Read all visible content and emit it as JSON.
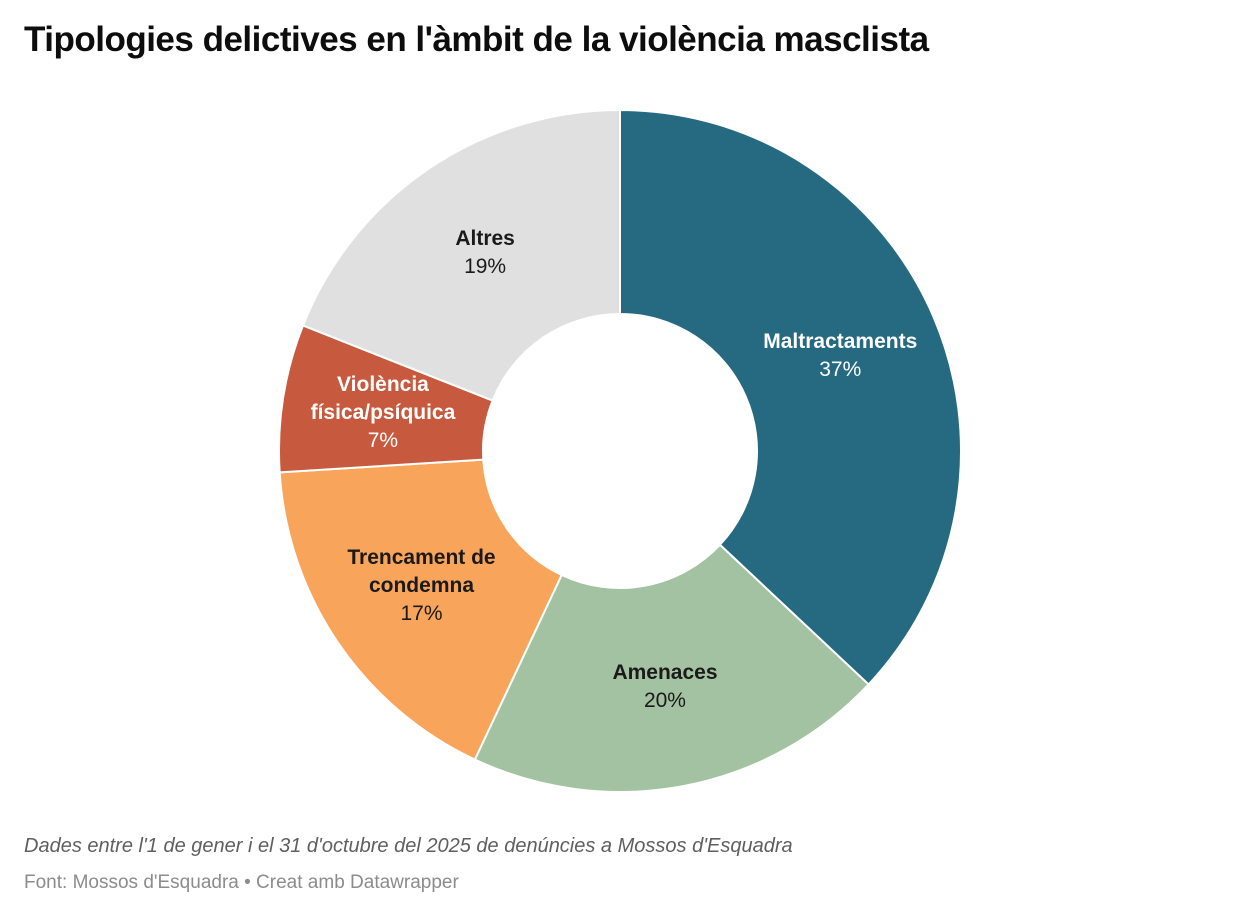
{
  "title": "Tipologies delictives en l'àmbit de la violència masclista",
  "chart_data": {
    "type": "pie",
    "subtype": "donut",
    "unit": "%",
    "direction": "clockwise",
    "start_angle_deg": 0,
    "legend_position": "none",
    "slices": [
      {
        "label": "Maltractaments",
        "label_lines": [
          "Maltractaments"
        ],
        "value": 37,
        "pct_label": "37%",
        "color": "#266a82",
        "label_color": "#ffffff"
      },
      {
        "label": "Amenaces",
        "label_lines": [
          "Amenaces"
        ],
        "value": 20,
        "pct_label": "20%",
        "color": "#a3c2a1",
        "label_color": "#1a1a1a"
      },
      {
        "label": "Trencament de condemna",
        "label_lines": [
          "Trencament de",
          "condemna"
        ],
        "value": 17,
        "pct_label": "17%",
        "color": "#f9a45b",
        "label_color": "#1a1a1a"
      },
      {
        "label": "Violència física/psíquica",
        "label_lines": [
          "Violència",
          "física/psíquica"
        ],
        "value": 7,
        "pct_label": "7%",
        "color": "#c75a3e",
        "label_color": "#ffffff"
      },
      {
        "label": "Altres",
        "label_lines": [
          "Altres"
        ],
        "value": 19,
        "pct_label": "19%",
        "color": "#e0e0e0",
        "label_color": "#1a1a1a"
      }
    ]
  },
  "footer": {
    "notes": "Dades entre l'1 de gener i el 31 d'octubre del 2025 de denúncies a Mossos d'Esquadra",
    "source": "Font: Mossos d'Esquadra • Creat amb Datawrapper"
  }
}
